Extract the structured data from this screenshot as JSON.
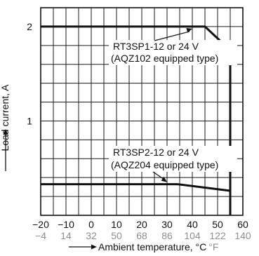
{
  "chart_data": {
    "type": "line",
    "xlabel": "Ambient temperature, °C",
    "xlabel_unit2": "°F",
    "ylabel": "Load current, A",
    "xlim": [
      -20,
      60
    ],
    "ylim": [
      0,
      2.2
    ],
    "grid": true,
    "x_ticks": [
      -20,
      -10,
      0,
      10,
      20,
      30,
      40,
      50,
      60
    ],
    "x_tick_labels_c": [
      "−20",
      "−10",
      "0",
      "10",
      "20",
      "30",
      "40",
      "50",
      "60"
    ],
    "x_tick_labels_f": [
      "−4",
      "14",
      "32",
      "50",
      "68",
      "86",
      "104",
      "122",
      "140"
    ],
    "y_ticks": [
      1,
      2
    ],
    "y_tick_labels": [
      "1",
      "2"
    ],
    "series": [
      {
        "name": "RT3SP1-12 or 24 V (AQZ102 equipped type)",
        "points": [
          [
            -20,
            2.0
          ],
          [
            45,
            2.0
          ],
          [
            55,
            1.75
          ],
          [
            55,
            0
          ]
        ]
      },
      {
        "name": "RT3SP2-12 or 24 V (AQZ204 equipped type)",
        "points": [
          [
            -20,
            0.33
          ],
          [
            34,
            0.33
          ],
          [
            55,
            0.26
          ]
        ]
      }
    ],
    "annotations": [
      {
        "line1": "RT3SP1-12 or 24 V",
        "line2": "(AQZ102 equipped type)",
        "points_to": [
          40,
          2.0
        ]
      },
      {
        "line1": "RT3SP2-12 or 24 V",
        "line2": "(AQZ204 equipped type)",
        "points_to": [
          30,
          0.33
        ]
      }
    ]
  }
}
